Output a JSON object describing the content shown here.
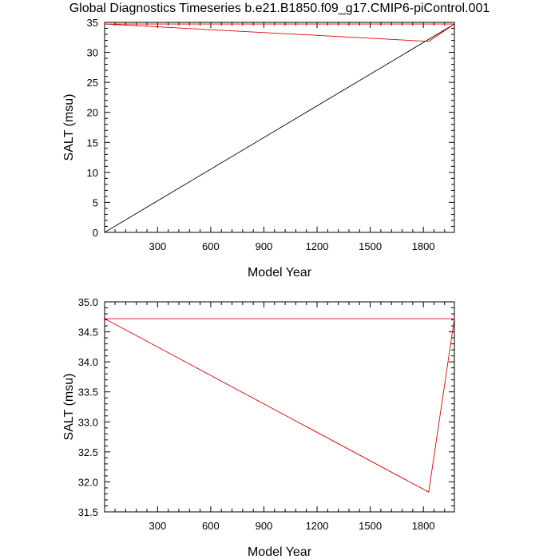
{
  "title": "Global Diagnostics Timeseries b.e21.B1850.f09_g17.CMIP6-piControl.001",
  "colors": {
    "series_black": "#000000",
    "series_red": "#e00000"
  },
  "chart_data": [
    {
      "type": "line",
      "xlabel": "Model Year",
      "ylabel": "SALT (msu)",
      "xlim": [
        1,
        1975
      ],
      "ylim": [
        0,
        35
      ],
      "xticks": [
        300,
        600,
        900,
        1200,
        1500,
        1800
      ],
      "yticks": [
        0,
        5,
        10,
        15,
        20,
        25,
        30,
        35
      ],
      "yticklabels": [
        "0",
        "5",
        "10",
        "15",
        "20",
        "25",
        "30",
        "35"
      ],
      "grid": false,
      "series": [
        {
          "color": "black",
          "x": [
            1,
            1975
          ],
          "y": [
            0,
            34.72
          ]
        },
        {
          "color": "red",
          "x": [
            1,
            1830,
            1975,
            1
          ],
          "y": [
            34.72,
            31.83,
            34.72,
            34.72
          ]
        }
      ]
    },
    {
      "type": "line",
      "xlabel": "Model Year",
      "ylabel": "SALT (msu)",
      "xlim": [
        1,
        1975
      ],
      "ylim": [
        31.5,
        35.0
      ],
      "xticks": [
        300,
        600,
        900,
        1200,
        1500,
        1800
      ],
      "yticks": [
        31.5,
        32.0,
        32.5,
        33.0,
        33.5,
        34.0,
        34.5,
        35.0
      ],
      "yticklabels": [
        "31.5",
        "32.0",
        "32.5",
        "33.0",
        "33.5",
        "34.0",
        "34.5",
        "35.0"
      ],
      "grid": false,
      "series": [
        {
          "color": "red",
          "x": [
            1,
            1830,
            1975,
            1
          ],
          "y": [
            34.72,
            31.83,
            34.72,
            34.72
          ]
        }
      ]
    }
  ]
}
